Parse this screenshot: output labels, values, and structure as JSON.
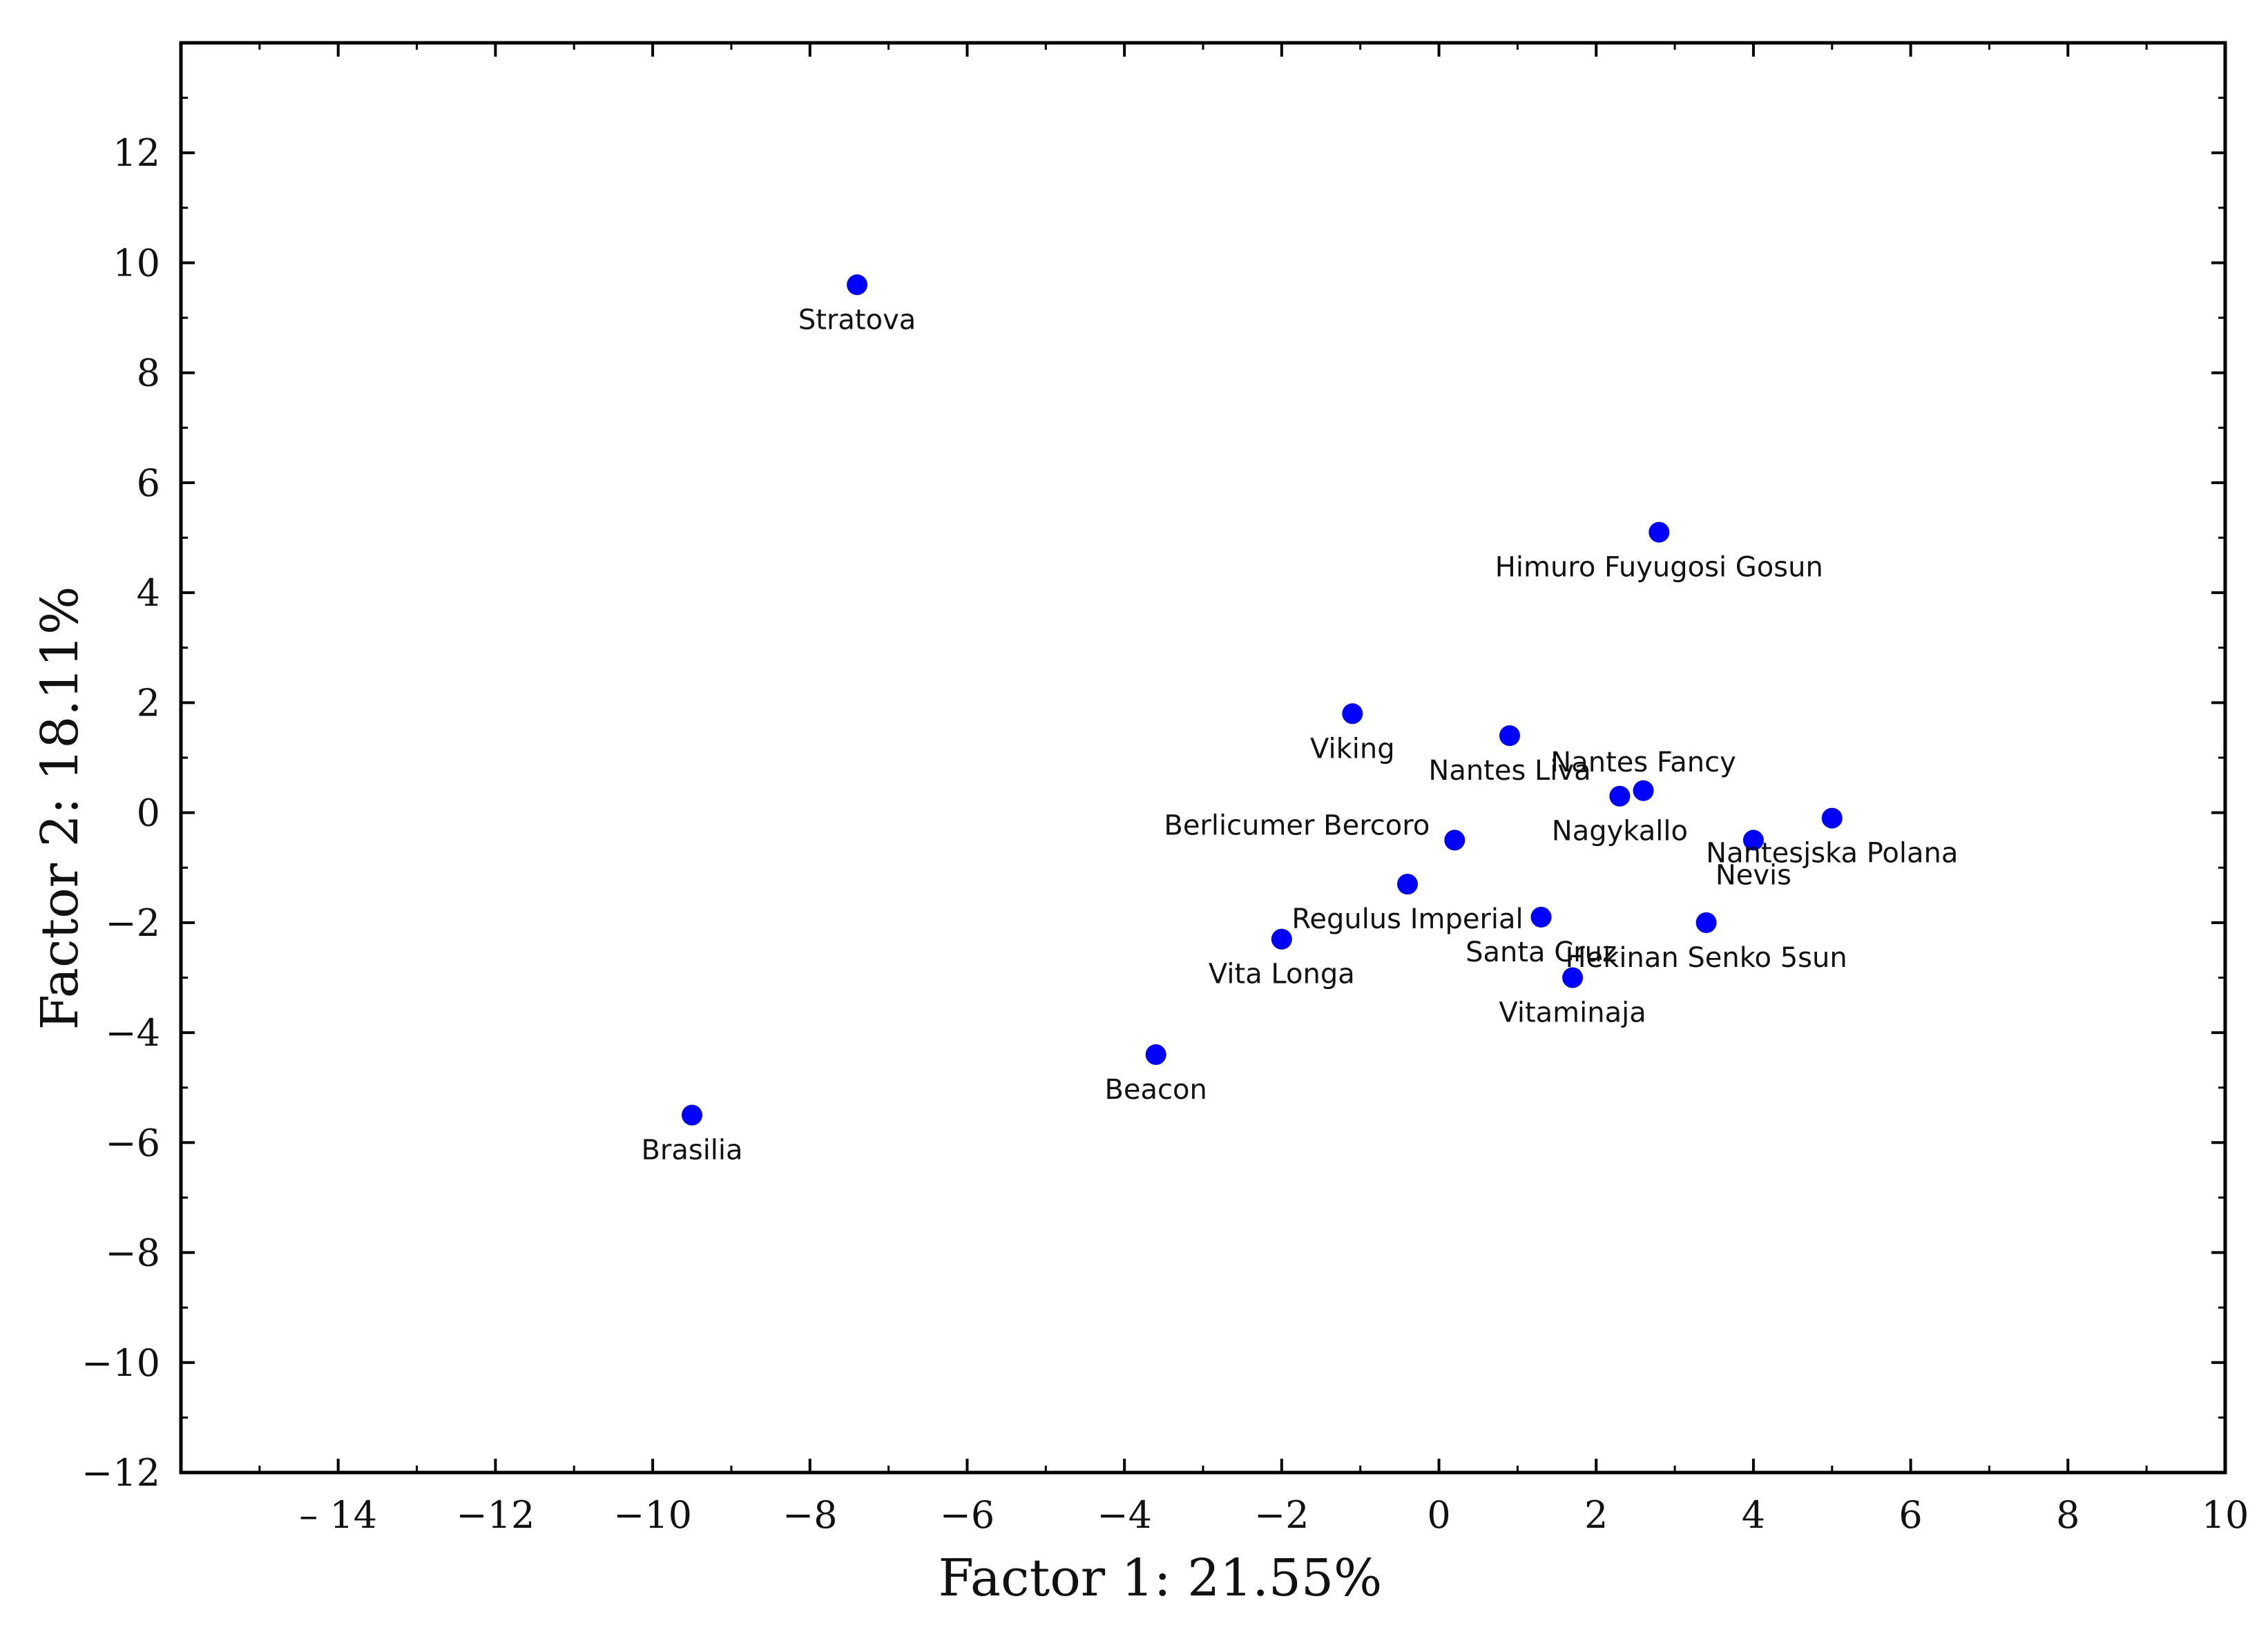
{
  "chart_data": {
    "type": "scatter",
    "xlabel": "Factor 1: 21.55%",
    "ylabel": "Factor 2: 18.11%",
    "xlim": [
      -16.0,
      10.0
    ],
    "ylim": [
      -12.0,
      14.0
    ],
    "xticks": [
      -14,
      -12,
      -10,
      -8,
      -6,
      -4,
      -2,
      0,
      2,
      4,
      6,
      8,
      10
    ],
    "xtick_labels": [
      "– 14",
      "−12",
      "−10",
      "−8",
      "−6",
      "−4",
      "−2",
      "0",
      "2",
      "4",
      "6",
      "8",
      "10"
    ],
    "yticks": [
      12,
      10,
      8,
      6,
      4,
      2,
      0,
      -2,
      -4,
      -6,
      -8,
      -10,
      -12
    ],
    "ytick_labels": [
      "12",
      "10",
      "8",
      "6",
      "4",
      "2",
      "0",
      "−2",
      "−4",
      "−6",
      "−8",
      "−10",
      "−12"
    ],
    "grid": false,
    "legend": "none",
    "marker_color": "#0000ff",
    "points": [
      {
        "label": "Stratova",
        "x": -7.4,
        "y": 9.6,
        "label_pos": "below"
      },
      {
        "label": "Himuro Fuyugosi Gosun",
        "x": 2.8,
        "y": 5.1,
        "label_pos": "below"
      },
      {
        "label": "Viking",
        "x": -1.1,
        "y": 1.8,
        "label_pos": "below"
      },
      {
        "label": "Nantes Liva",
        "x": 0.9,
        "y": 1.4,
        "label_pos": "below"
      },
      {
        "label": "Nantes Fancy",
        "x": 2.6,
        "y": 0.4,
        "label_pos": "above"
      },
      {
        "label": "Nagykallo",
        "x": 2.3,
        "y": 0.3,
        "label_pos": "below"
      },
      {
        "label": "Berlicumer Bercoro",
        "x": 0.2,
        "y": -0.5,
        "label_pos": "upper-left"
      },
      {
        "label": "Nevis",
        "x": 4.0,
        "y": -0.5,
        "label_pos": "below"
      },
      {
        "label": "Nantesjska Polana",
        "x": 5.0,
        "y": -0.1,
        "label_pos": "below"
      },
      {
        "label": "Regulus Imperial",
        "x": -0.4,
        "y": -1.3,
        "label_pos": "below"
      },
      {
        "label": "Santa Cruz",
        "x": 1.3,
        "y": -1.9,
        "label_pos": "below"
      },
      {
        "label": "Hekinan Senko 5sun",
        "x": 3.4,
        "y": -2.0,
        "label_pos": "below"
      },
      {
        "label": "Vita Longa",
        "x": -2.0,
        "y": -2.3,
        "label_pos": "below"
      },
      {
        "label": "Vitaminaja",
        "x": 1.7,
        "y": -3.0,
        "label_pos": "below"
      },
      {
        "label": "Beacon",
        "x": -3.6,
        "y": -4.4,
        "label_pos": "below"
      },
      {
        "label": "Brasilia",
        "x": -9.5,
        "y": -5.5,
        "label_pos": "below"
      }
    ]
  }
}
